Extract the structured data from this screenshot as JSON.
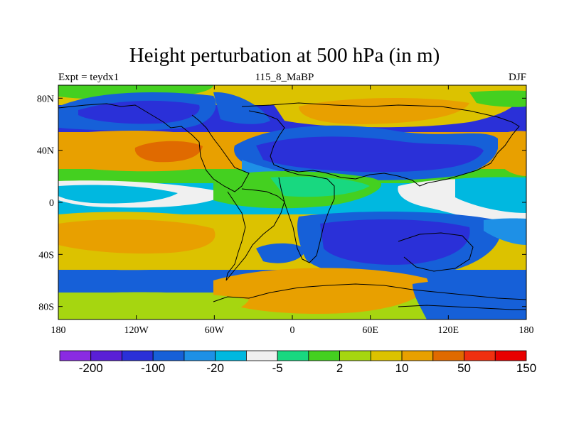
{
  "title": "Height perturbation at 500 hPa (in m)",
  "subtitle_left": "Expt = teydx1",
  "subtitle_center": "115_8_MaBP",
  "subtitle_right": "DJF",
  "chart_data": {
    "type": "heatmap",
    "title": "Height perturbation at 500 hPa (in m)",
    "projection": "cylindrical-equidistant",
    "xlim": [
      -180,
      180
    ],
    "ylim": [
      -90,
      90
    ],
    "x_ticks": [
      {
        "value": -180,
        "label": "180"
      },
      {
        "value": -120,
        "label": "120W"
      },
      {
        "value": -60,
        "label": "60W"
      },
      {
        "value": 0,
        "label": "0"
      },
      {
        "value": 60,
        "label": "60E"
      },
      {
        "value": 120,
        "label": "120E"
      },
      {
        "value": 180,
        "label": "180"
      }
    ],
    "y_ticks": [
      {
        "value": 80,
        "label": "80N"
      },
      {
        "value": 40,
        "label": "40N"
      },
      {
        "value": 0,
        "label": "0"
      },
      {
        "value": -40,
        "label": "40S"
      },
      {
        "value": -80,
        "label": "80S"
      }
    ],
    "colorbar": {
      "colors": [
        "#8a2be2",
        "#5a1fd6",
        "#2a30d8",
        "#1660d8",
        "#1e90e6",
        "#00b8e0",
        "#f0f0f0",
        "#18d880",
        "#44d020",
        "#a6d610",
        "#dcc200",
        "#e8a000",
        "#e06a00",
        "#f03010",
        "#e80000"
      ],
      "tick_labels": [
        "-200",
        "-100",
        "-20",
        "-5",
        "2",
        "10",
        "50",
        "150"
      ]
    }
  }
}
